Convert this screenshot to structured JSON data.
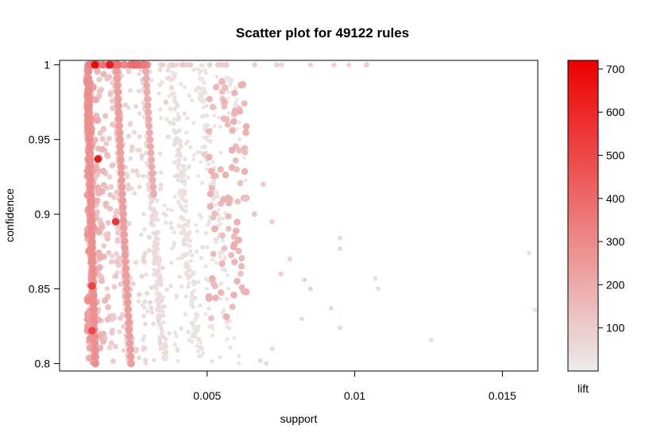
{
  "chart_data": {
    "type": "scatter",
    "title": "Scatter plot for 49122 rules",
    "xlabel": "support",
    "ylabel": "confidence",
    "xlim": [
      0.0,
      0.0162
    ],
    "ylim": [
      0.795,
      1.003
    ],
    "x_ticks": [
      {
        "value": 0.005,
        "label": "0.005"
      },
      {
        "value": 0.01,
        "label": "0.01"
      },
      {
        "value": 0.015,
        "label": "0.015"
      }
    ],
    "y_ticks": [
      {
        "value": 0.8,
        "label": "0.8"
      },
      {
        "value": 0.85,
        "label": "0.85"
      },
      {
        "value": 0.9,
        "label": "0.9"
      },
      {
        "value": 0.95,
        "label": "0.95"
      },
      {
        "value": 1.0,
        "label": "1"
      }
    ],
    "color_scale": {
      "label": "lift",
      "min": 0,
      "max": 720,
      "low_color": "#ececec",
      "high_color": "#ee0000",
      "ticks": [
        {
          "value": 100,
          "label": "100"
        },
        {
          "value": 200,
          "label": "200"
        },
        {
          "value": 300,
          "label": "300"
        },
        {
          "value": 400,
          "label": "400"
        },
        {
          "value": 500,
          "label": "500"
        },
        {
          "value": 600,
          "label": "600"
        },
        {
          "value": 700,
          "label": "700"
        }
      ]
    },
    "highlighted_points": [
      {
        "support": 0.0012,
        "confidence": 1.0,
        "lift": 700
      },
      {
        "support": 0.0017,
        "confidence": 1.0,
        "lift": 640
      },
      {
        "support": 0.0013,
        "confidence": 0.937,
        "lift": 650
      },
      {
        "support": 0.0019,
        "confidence": 0.895,
        "lift": 560
      },
      {
        "support": 0.0011,
        "confidence": 0.852,
        "lift": 520
      },
      {
        "support": 0.0011,
        "confidence": 0.822,
        "lift": 500
      }
    ],
    "sparse_points": [
      {
        "support": 0.0036,
        "confidence": 0.975,
        "lift": 90
      },
      {
        "support": 0.0049,
        "confidence": 0.94,
        "lift": 110
      },
      {
        "support": 0.0053,
        "confidence": 0.985,
        "lift": 160
      },
      {
        "support": 0.0057,
        "confidence": 0.96,
        "lift": 150
      },
      {
        "support": 0.006,
        "confidence": 0.93,
        "lift": 140
      },
      {
        "support": 0.0063,
        "confidence": 0.91,
        "lift": 120
      },
      {
        "support": 0.0066,
        "confidence": 0.9,
        "lift": 110
      },
      {
        "support": 0.0069,
        "confidence": 0.92,
        "lift": 100
      },
      {
        "support": 0.0072,
        "confidence": 0.895,
        "lift": 90
      },
      {
        "support": 0.0075,
        "confidence": 0.86,
        "lift": 80
      },
      {
        "support": 0.0078,
        "confidence": 0.87,
        "lift": 70
      },
      {
        "support": 0.0083,
        "confidence": 0.856,
        "lift": 70
      },
      {
        "support": 0.0085,
        "confidence": 0.85,
        "lift": 70
      },
      {
        "support": 0.0082,
        "confidence": 0.83,
        "lift": 60
      },
      {
        "support": 0.0092,
        "confidence": 0.837,
        "lift": 60
      },
      {
        "support": 0.0095,
        "confidence": 0.884,
        "lift": 60
      },
      {
        "support": 0.0095,
        "confidence": 0.877,
        "lift": 60
      },
      {
        "support": 0.0095,
        "confidence": 0.824,
        "lift": 60
      },
      {
        "support": 0.0107,
        "confidence": 0.857,
        "lift": 50
      },
      {
        "support": 0.0108,
        "confidence": 0.85,
        "lift": 50
      },
      {
        "support": 0.0126,
        "confidence": 0.816,
        "lift": 50
      },
      {
        "support": 0.0159,
        "confidence": 0.874,
        "lift": 40
      },
      {
        "support": 0.0161,
        "confidence": 0.836,
        "lift": 40
      },
      {
        "support": 0.0093,
        "confidence": 1.0,
        "lift": 80
      },
      {
        "support": 0.0098,
        "confidence": 1.0,
        "lift": 80
      },
      {
        "support": 0.0104,
        "confidence": 1.0,
        "lift": 100
      },
      {
        "support": 0.0085,
        "confidence": 1.0,
        "lift": 70
      },
      {
        "support": 0.0072,
        "confidence": 0.81,
        "lift": 60
      },
      {
        "support": 0.0068,
        "confidence": 0.802,
        "lift": 60
      },
      {
        "support": 0.007,
        "confidence": 0.8,
        "lift": 60
      }
    ]
  }
}
